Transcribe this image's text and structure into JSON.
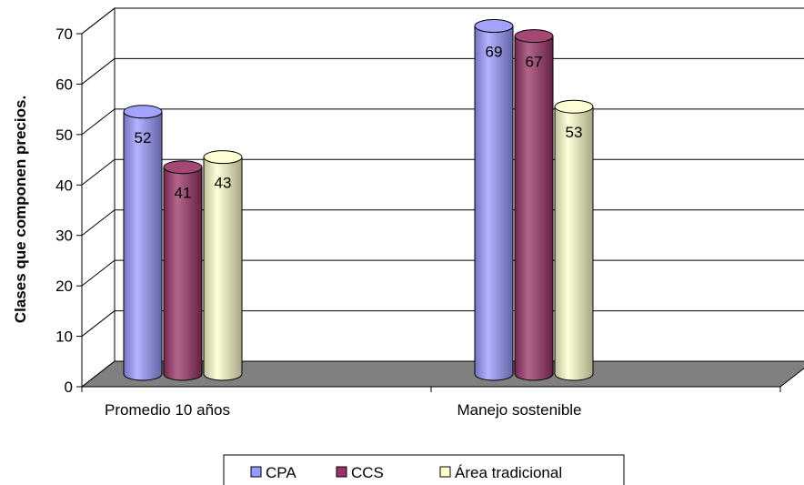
{
  "chart_data": {
    "type": "bar",
    "title": "",
    "xlabel": "",
    "ylabel": "Clases que componen precios.",
    "ylim": [
      0,
      70
    ],
    "yticks": [
      0,
      10,
      20,
      30,
      40,
      50,
      60,
      70
    ],
    "grid": true,
    "legend_position": "bottom",
    "categories": [
      "Promedio 10 años",
      "Manejo sostenible"
    ],
    "series": [
      {
        "name": "CPA",
        "values": [
          52,
          69
        ],
        "color": "#9999ff"
      },
      {
        "name": "CCS",
        "values": [
          41,
          67
        ],
        "color": "#993366"
      },
      {
        "name": "Área tradicional",
        "values": [
          43,
          53
        ],
        "color": "#ffffcc"
      }
    ],
    "floor_color": "#808080"
  }
}
